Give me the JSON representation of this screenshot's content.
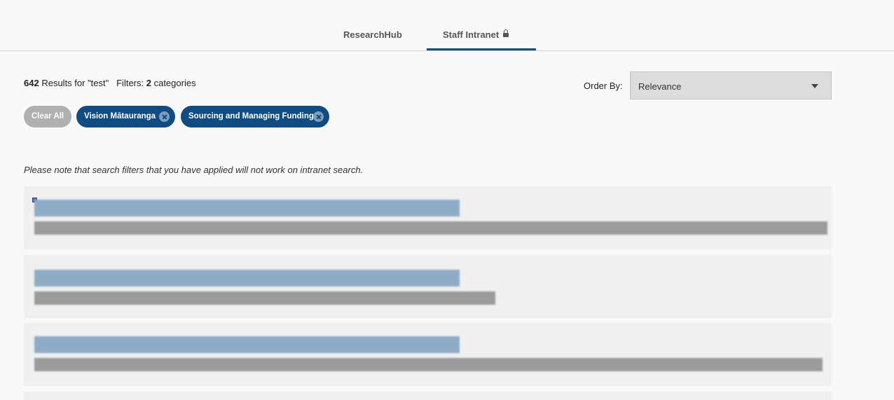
{
  "tabs": [
    {
      "label": "ResearchHub"
    },
    {
      "label": "Staff Intranet",
      "icon": "lock-icon",
      "active": true
    }
  ],
  "results": {
    "count": "642",
    "query_text": "Results for \"test\"",
    "filters_label": "Filters:",
    "filters_count": "2",
    "filters_suffix": "categories"
  },
  "order_by": {
    "label": "Order By:",
    "selected": "Relevance"
  },
  "filters": {
    "clear_label": "Clear All",
    "chips": [
      {
        "label": "Vision Mātauranga",
        "icon": "x-circle-icon"
      },
      {
        "label": "Sourcing and Managing Funding",
        "icon": "x-circle-icon"
      }
    ]
  },
  "note": "Please note that search filters that you have applied will not work on intranet search.",
  "colors": {
    "accent": "#0f4c81",
    "chip_clear": "#b0b0b0",
    "select_bg": "#dcdcdc"
  }
}
